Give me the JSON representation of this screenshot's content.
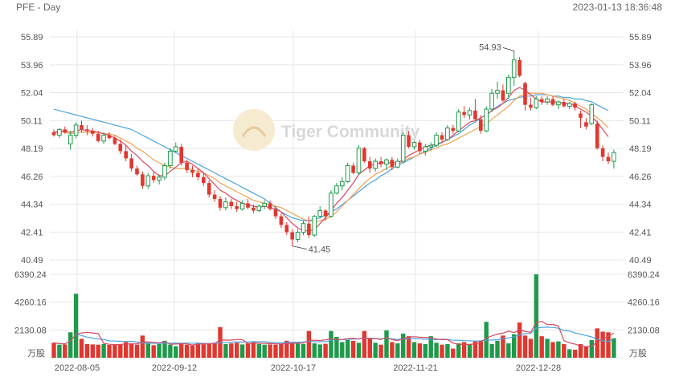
{
  "header": {
    "title": "PFE - Day",
    "datetime": "2023-01-13 18:36:48"
  },
  "watermark": {
    "text": "Tiger Community"
  },
  "colors": {
    "up": "#1e9a4a",
    "down": "#e0372f",
    "ma_short": "#d9485f",
    "ma_mid": "#f0a050",
    "ma_long": "#4aa3df",
    "grid": "#e6e6e6"
  },
  "chart_data": {
    "type": "candlestick",
    "price_axis": {
      "ticks": [
        "55.89",
        "53.96",
        "52.04",
        "50.11",
        "48.19",
        "46.26",
        "44.34",
        "42.41",
        "40.49"
      ],
      "range": [
        40.49,
        55.89
      ]
    },
    "volume_axis": {
      "ticks": [
        "6390.24",
        "4260.16",
        "2130.08"
      ],
      "unit": "万股",
      "range": [
        0,
        6390.24
      ]
    },
    "x_ticks": [
      "2022-08-05",
      "2022-09-12",
      "2022-10-17",
      "2022-11-21",
      "2022-12-28"
    ],
    "annotations": {
      "high": "54.93",
      "low": "41.45"
    },
    "candles": [
      [
        49.3,
        49.5,
        49.0,
        49.1
      ],
      [
        49.1,
        49.6,
        48.9,
        49.5
      ],
      [
        49.5,
        49.7,
        49.2,
        49.3
      ],
      [
        48.5,
        49.4,
        48.1,
        49.1
      ],
      [
        49.1,
        50.0,
        48.9,
        49.8
      ],
      [
        49.8,
        50.1,
        49.3,
        49.5
      ],
      [
        49.5,
        49.8,
        49.1,
        49.4
      ],
      [
        49.4,
        49.6,
        49.0,
        49.2
      ],
      [
        49.2,
        49.4,
        48.6,
        48.7
      ],
      [
        48.7,
        49.3,
        48.5,
        49.1
      ],
      [
        49.1,
        49.3,
        48.8,
        48.9
      ],
      [
        48.9,
        49.1,
        48.4,
        48.5
      ],
      [
        48.5,
        48.8,
        47.8,
        48.0
      ],
      [
        48.0,
        48.4,
        47.3,
        47.5
      ],
      [
        47.5,
        47.8,
        46.6,
        46.8
      ],
      [
        46.8,
        47.0,
        46.3,
        46.4
      ],
      [
        46.4,
        46.6,
        45.4,
        45.6
      ],
      [
        45.6,
        46.5,
        45.4,
        46.3
      ],
      [
        46.3,
        46.6,
        45.8,
        46.0
      ],
      [
        46.0,
        46.4,
        45.7,
        46.2
      ],
      [
        46.2,
        47.2,
        46.0,
        47.0
      ],
      [
        47.0,
        48.2,
        46.8,
        48.0
      ],
      [
        48.0,
        48.6,
        47.9,
        48.3
      ],
      [
        48.3,
        48.5,
        47.0,
        47.2
      ],
      [
        47.2,
        47.4,
        46.5,
        46.7
      ],
      [
        46.7,
        47.0,
        46.2,
        46.5
      ],
      [
        46.5,
        46.8,
        46.0,
        46.2
      ],
      [
        46.2,
        46.5,
        45.6,
        45.8
      ],
      [
        45.8,
        46.0,
        44.8,
        45.0
      ],
      [
        45.0,
        45.3,
        44.5,
        44.7
      ],
      [
        44.7,
        44.9,
        43.9,
        44.1
      ],
      [
        44.1,
        44.8,
        43.9,
        44.5
      ],
      [
        44.5,
        44.7,
        44.0,
        44.2
      ],
      [
        44.2,
        44.5,
        43.8,
        44.0
      ],
      [
        44.0,
        44.6,
        43.9,
        44.4
      ],
      [
        44.4,
        44.7,
        44.0,
        44.1
      ],
      [
        44.1,
        44.3,
        43.7,
        43.9
      ],
      [
        43.9,
        44.3,
        43.8,
        44.2
      ],
      [
        44.2,
        44.6,
        44.0,
        44.4
      ],
      [
        44.4,
        44.6,
        43.9,
        44.0
      ],
      [
        44.0,
        44.2,
        43.3,
        43.5
      ],
      [
        43.5,
        43.7,
        42.7,
        42.9
      ],
      [
        42.9,
        43.1,
        42.2,
        42.4
      ],
      [
        42.4,
        42.6,
        41.45,
        41.9
      ],
      [
        41.9,
        42.6,
        41.7,
        42.4
      ],
      [
        42.4,
        43.2,
        42.2,
        43.0
      ],
      [
        43.0,
        43.5,
        42.0,
        42.2
      ],
      [
        42.2,
        43.6,
        42.1,
        43.5
      ],
      [
        43.5,
        44.2,
        43.4,
        43.9
      ],
      [
        43.9,
        44.0,
        43.2,
        43.5
      ],
      [
        43.5,
        45.3,
        43.4,
        45.1
      ],
      [
        45.1,
        45.8,
        45.0,
        45.6
      ],
      [
        45.6,
        46.2,
        45.3,
        45.9
      ],
      [
        45.9,
        47.2,
        45.8,
        47.0
      ],
      [
        47.0,
        47.2,
        46.4,
        46.5
      ],
      [
        46.5,
        48.4,
        46.4,
        48.2
      ],
      [
        48.2,
        48.3,
        47.2,
        47.3
      ],
      [
        47.3,
        47.6,
        46.5,
        46.8
      ],
      [
        46.8,
        47.5,
        46.6,
        47.3
      ],
      [
        47.3,
        47.6,
        46.9,
        47.1
      ],
      [
        47.1,
        47.5,
        46.7,
        47.4
      ],
      [
        47.4,
        47.6,
        46.7,
        46.9
      ],
      [
        46.9,
        47.5,
        46.8,
        47.3
      ],
      [
        47.3,
        49.3,
        47.2,
        49.1
      ],
      [
        49.1,
        49.4,
        48.2,
        48.3
      ],
      [
        48.3,
        48.7,
        48.1,
        48.6
      ],
      [
        48.6,
        48.8,
        47.8,
        48.0
      ],
      [
        48.0,
        48.5,
        47.7,
        48.3
      ],
      [
        48.3,
        48.6,
        48.0,
        48.4
      ],
      [
        48.4,
        49.3,
        48.3,
        49.1
      ],
      [
        49.1,
        49.3,
        48.6,
        48.8
      ],
      [
        48.8,
        49.8,
        48.7,
        49.6
      ],
      [
        49.6,
        49.8,
        49.2,
        49.4
      ],
      [
        49.4,
        50.9,
        49.3,
        50.7
      ],
      [
        50.7,
        51.1,
        50.3,
        50.5
      ],
      [
        50.5,
        51.0,
        50.2,
        50.8
      ],
      [
        50.8,
        51.6,
        50.1,
        50.2
      ],
      [
        50.2,
        50.5,
        49.2,
        49.4
      ],
      [
        49.4,
        51.1,
        49.3,
        50.9
      ],
      [
        50.9,
        52.3,
        50.7,
        52.0
      ],
      [
        52.0,
        52.8,
        51.6,
        52.2
      ],
      [
        52.2,
        52.6,
        51.4,
        51.5
      ],
      [
        52.0,
        53.3,
        51.6,
        53.1
      ],
      [
        53.1,
        54.93,
        52.5,
        54.3
      ],
      [
        54.3,
        54.5,
        53.1,
        53.2
      ],
      [
        52.7,
        52.8,
        50.8,
        51.2
      ],
      [
        51.2,
        51.7,
        50.8,
        51.0
      ],
      [
        51.0,
        51.8,
        50.9,
        51.6
      ],
      [
        51.6,
        51.8,
        51.2,
        51.4
      ],
      [
        51.4,
        51.8,
        51.2,
        51.6
      ],
      [
        51.6,
        51.8,
        51.1,
        51.2
      ],
      [
        51.2,
        51.5,
        50.9,
        51.4
      ],
      [
        51.4,
        51.6,
        51.0,
        51.1
      ],
      [
        51.1,
        51.4,
        50.9,
        51.3
      ],
      [
        51.3,
        51.4,
        50.8,
        51.0
      ],
      [
        50.6,
        50.8,
        49.6,
        50.3
      ],
      [
        50.0,
        50.3,
        49.5,
        49.7
      ],
      [
        49.9,
        51.3,
        49.8,
        51.2
      ],
      [
        49.9,
        50.1,
        48.1,
        48.2
      ],
      [
        48.2,
        48.4,
        47.3,
        47.6
      ],
      [
        47.6,
        47.9,
        47.1,
        47.3
      ],
      [
        47.3,
        48.1,
        46.8,
        47.9
      ]
    ],
    "volumes": [
      1150,
      1000,
      1020,
      1950,
      4900,
      1450,
      1050,
      1020,
      1000,
      1050,
      980,
      990,
      1000,
      1200,
      1100,
      1000,
      1700,
      1100,
      960,
      1050,
      1300,
      1000,
      880,
      1100,
      1000,
      940,
      1150,
      1020,
      1060,
      1150,
      2350,
      1050,
      1100,
      1150,
      1020,
      1100,
      1250,
      1050,
      1000,
      1020,
      1000,
      1050,
      1300,
      1150,
      1100,
      1050,
      2050,
      1100,
      1020,
      1070,
      2050,
      1600,
      1200,
      1350,
      1300,
      1150,
      2050,
      1500,
      1150,
      1000,
      2100,
      1200,
      1100,
      1850,
      1650,
      1200,
      1100,
      1050,
      1650,
      1150,
      1000,
      1050,
      700,
      1100,
      1200,
      1050,
      1250,
      1300,
      2750,
      1050,
      1300,
      1700,
      1100,
      1800,
      2700,
      1700,
      1450,
      6390,
      1650,
      1450,
      1200,
      1250,
      1050,
      650,
      620,
      1050,
      850,
      1350,
      2250,
      2000,
      1950,
      1500
    ],
    "ma_short": [
      49.3,
      49.4,
      49.4,
      49.3,
      49.4,
      49.5,
      49.4,
      49.4,
      49.3,
      49.2,
      49.1,
      48.9,
      48.7,
      48.4,
      48.0,
      47.7,
      47.3,
      47.0,
      46.6,
      46.3,
      46.3,
      46.6,
      46.9,
      47.2,
      47.3,
      47.1,
      46.8,
      46.5,
      46.1,
      45.7,
      45.3,
      45.1,
      44.8,
      44.6,
      44.4,
      44.3,
      44.2,
      44.1,
      44.2,
      44.1,
      44.0,
      43.8,
      43.4,
      43.0,
      42.7,
      42.5,
      42.5,
      42.6,
      43.0,
      43.4,
      43.9,
      44.4,
      44.8,
      45.3,
      45.8,
      46.4,
      46.7,
      47.0,
      47.1,
      47.2,
      47.2,
      47.2,
      47.2,
      47.4,
      47.7,
      47.9,
      48.1,
      48.3,
      48.4,
      48.5,
      48.6,
      48.8,
      49.1,
      49.4,
      49.7,
      50.0,
      50.1,
      50.3,
      50.5,
      50.8,
      51.0,
      51.3,
      51.7,
      52.2,
      52.4,
      52.2,
      51.9,
      51.6,
      51.4,
      51.4,
      51.4,
      51.4,
      51.3,
      51.3,
      51.1,
      50.9,
      50.7,
      50.4,
      50.0,
      49.5,
      49.0
    ],
    "ma_mid": [
      49.3,
      49.3,
      49.3,
      49.2,
      49.3,
      49.3,
      49.3,
      49.3,
      49.3,
      49.2,
      49.2,
      49.1,
      48.9,
      48.7,
      48.5,
      48.2,
      48.0,
      47.7,
      47.4,
      47.2,
      47.0,
      46.9,
      46.8,
      46.8,
      46.8,
      46.7,
      46.6,
      46.5,
      46.3,
      46.1,
      45.8,
      45.6,
      45.4,
      45.2,
      45.0,
      44.8,
      44.6,
      44.5,
      44.4,
      44.3,
      44.2,
      44.1,
      43.9,
      43.7,
      43.5,
      43.3,
      43.2,
      43.1,
      43.2,
      43.3,
      43.5,
      43.8,
      44.2,
      44.6,
      45.0,
      45.4,
      45.8,
      46.1,
      46.4,
      46.6,
      46.8,
      47.0,
      47.1,
      47.3,
      47.5,
      47.6,
      47.8,
      47.9,
      48.1,
      48.2,
      48.4,
      48.5,
      48.7,
      48.9,
      49.1,
      49.3,
      49.5,
      49.7,
      49.9,
      50.2,
      50.5,
      50.8,
      51.1,
      51.5,
      51.8,
      51.9,
      52.0,
      52.0,
      52.0,
      51.9,
      51.8,
      51.7,
      51.6,
      51.5,
      51.3,
      51.1,
      50.9,
      50.6,
      50.3,
      50.0,
      49.6
    ],
    "ma_long": [
      50.9,
      50.8,
      50.7,
      50.6,
      50.5,
      50.4,
      50.3,
      50.2,
      50.1,
      50.0,
      49.9,
      49.8,
      49.7,
      49.6,
      49.5,
      49.3,
      49.1,
      48.9,
      48.7,
      48.5,
      48.3,
      48.1,
      47.9,
      47.7,
      47.5,
      47.3,
      47.1,
      46.9,
      46.7,
      46.5,
      46.3,
      46.1,
      45.9,
      45.7,
      45.5,
      45.3,
      45.1,
      44.9,
      44.7,
      44.4,
      44.1,
      43.8,
      43.6,
      43.4,
      43.3,
      43.2,
      43.2,
      43.3,
      43.4,
      43.6,
      43.8,
      44.0,
      44.3,
      44.6,
      44.9,
      45.2,
      45.5,
      45.8,
      46.0,
      46.3,
      46.5,
      46.8,
      47.0,
      47.2,
      47.4,
      47.6,
      47.8,
      48.0,
      48.2,
      48.4,
      48.6,
      48.8,
      49.0,
      49.2,
      49.5,
      49.8,
      50.0,
      50.3,
      50.5,
      50.8,
      51.1,
      51.3,
      51.5,
      51.6,
      51.7,
      51.8,
      51.8,
      51.9,
      51.9,
      51.9,
      51.8,
      51.8,
      51.7,
      51.7,
      51.6,
      51.6,
      51.5,
      51.4,
      51.2,
      51.0,
      50.8
    ],
    "vol_ma5": [
      1150,
      1080,
      1060,
      1280,
      1800,
      1900,
      1950,
      1900,
      1850,
      1100,
      1030,
      1010,
      1020,
      1050,
      1060,
      1060,
      1200,
      1220,
      1170,
      1150,
      1220,
      1030,
      1050,
      1070,
      1060,
      980,
      1040,
      1060,
      1050,
      1100,
      1350,
      1350,
      1350,
      1400,
      1380,
      1080,
      1120,
      1110,
      1100,
      1080,
      1060,
      1060,
      1080,
      1100,
      1120,
      1130,
      1330,
      1340,
      1320,
      1370,
      1460,
      1380,
      1400,
      1460,
      1500,
      1440,
      1530,
      1470,
      1470,
      1400,
      1560,
      1390,
      1310,
      1450,
      1600,
      1610,
      1570,
      1560,
      1520,
      1430,
      1390,
      1390,
      1120,
      1040,
      1020,
      1020,
      1060,
      1180,
      1500,
      1670,
      1810,
      1880,
      2040,
      1930,
      2120,
      2020,
      1950,
      2690,
      2790,
      2540,
      2550,
      2430,
      1300,
      1140,
      1050,
      900,
      850,
      900,
      1200,
      1450,
      1660,
      1880
    ],
    "vol_ma10": [
      1150,
      1080,
      1060,
      1280,
      1800,
      1700,
      1580,
      1500,
      1430,
      1400,
      1290,
      1280,
      1260,
      1240,
      1260,
      1200,
      1130,
      1110,
      1110,
      1100,
      1130,
      1120,
      1110,
      1120,
      1120,
      1120,
      1110,
      1100,
      1090,
      1080,
      1160,
      1170,
      1190,
      1220,
      1200,
      1210,
      1230,
      1220,
      1240,
      1170,
      1170,
      1150,
      1170,
      1190,
      1190,
      1210,
      1240,
      1230,
      1230,
      1240,
      1340,
      1390,
      1380,
      1400,
      1430,
      1440,
      1500,
      1500,
      1480,
      1440,
      1530,
      1440,
      1410,
      1440,
      1450,
      1460,
      1450,
      1420,
      1440,
      1370,
      1430,
      1400,
      1340,
      1340,
      1310,
      1300,
      1280,
      1300,
      1350,
      1360,
      1380,
      1450,
      1520,
      1600,
      1760,
      1840,
      1870,
      2270,
      2330,
      2340,
      2320,
      2260,
      2090,
      2050,
      1900,
      1800,
      1700,
      1600,
      1400,
      1300,
      1250,
      1450
    ]
  }
}
